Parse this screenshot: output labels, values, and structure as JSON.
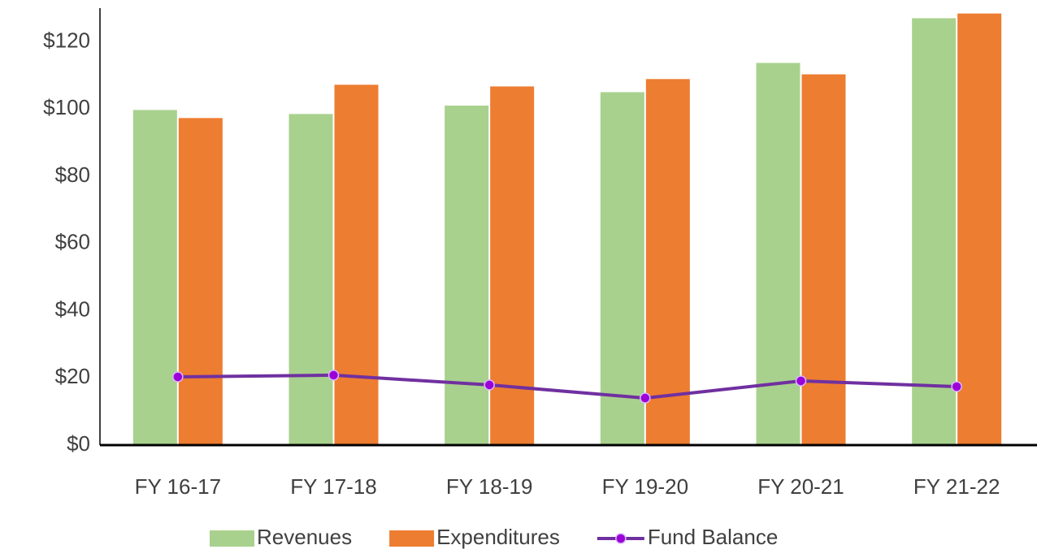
{
  "chart_data": {
    "type": "bar",
    "categories": [
      "FY 16-17",
      "FY 17-18",
      "FY 18-19",
      "FY 19-20",
      "FY 20-21",
      "FY 21-22"
    ],
    "series": [
      {
        "name": "Revenues",
        "color": "#a9d18e",
        "type": "bar",
        "values": [
          99.7,
          98.5,
          101,
          105,
          113.7,
          127
        ]
      },
      {
        "name": "Expenditures",
        "color": "#ed7d31",
        "type": "bar",
        "values": [
          97.3,
          107.2,
          106.7,
          108.9,
          110.3,
          128.4
        ]
      },
      {
        "name": "Fund Balance",
        "color": "#7030a0",
        "type": "line",
        "values": [
          20.3,
          20.8,
          17.9,
          14,
          19.1,
          17.4
        ]
      }
    ],
    "ylim": [
      0,
      130
    ],
    "yticks": [
      {
        "value": 0,
        "label": "$0"
      },
      {
        "value": 20,
        "label": "$20"
      },
      {
        "value": 40,
        "label": "$40"
      },
      {
        "value": 60,
        "label": "$60"
      },
      {
        "value": 80,
        "label": "$80"
      },
      {
        "value": 100,
        "label": "$100"
      },
      {
        "value": 120,
        "label": "$120"
      }
    ],
    "grid": false,
    "legend": "bottom"
  }
}
